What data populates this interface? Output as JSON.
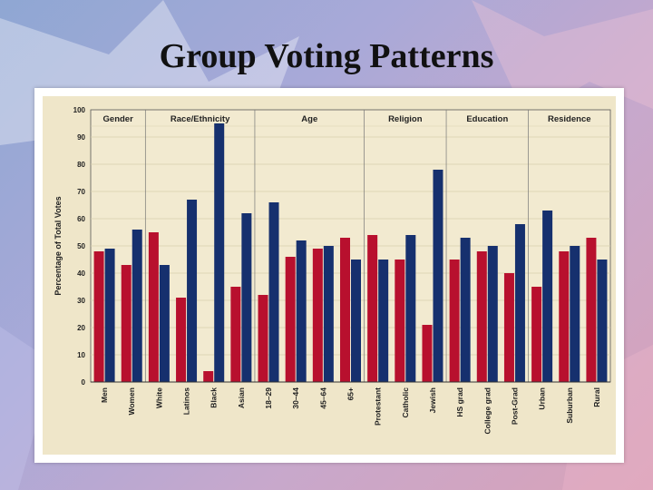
{
  "slide": {
    "title": "Group Voting Patterns"
  },
  "colors": {
    "series_a": "#b8102e",
    "series_b": "#16306e",
    "panel": "#efe6c9"
  },
  "chart_data": {
    "type": "bar",
    "title": "",
    "xlabel": "",
    "ylabel": "Percentage of Total Votes",
    "ylim": [
      0,
      100
    ],
    "yticks": [
      0,
      10,
      20,
      30,
      40,
      50,
      60,
      70,
      80,
      90,
      100
    ],
    "groups": [
      {
        "name": "Gender",
        "categories": [
          "Men",
          "Women"
        ]
      },
      {
        "name": "Race/Ethnicity",
        "categories": [
          "White",
          "Latinos",
          "Black",
          "Asian"
        ]
      },
      {
        "name": "Age",
        "categories": [
          "18–29",
          "30–44",
          "45–64",
          "65+"
        ]
      },
      {
        "name": "Religion",
        "categories": [
          "Protestant",
          "Catholic",
          "Jewish"
        ]
      },
      {
        "name": "Education",
        "categories": [
          "HS grad",
          "College grad",
          "Post-Grad"
        ]
      },
      {
        "name": "Residence",
        "categories": [
          "Urban",
          "Suburban",
          "Rural"
        ]
      }
    ],
    "categories": [
      "Men",
      "Women",
      "White",
      "Latinos",
      "Black",
      "Asian",
      "18–29",
      "30–44",
      "45–64",
      "65+",
      "Protestant",
      "Catholic",
      "Jewish",
      "HS grad",
      "College grad",
      "Post-Grad",
      "Urban",
      "Suburban",
      "Rural"
    ],
    "series": [
      {
        "name": "Red",
        "color": "#b8102e",
        "values": [
          48,
          43,
          55,
          31,
          4,
          35,
          32,
          46,
          49,
          53,
          54,
          45,
          21,
          45,
          48,
          40,
          35,
          48,
          53
        ]
      },
      {
        "name": "Blue",
        "color": "#16306e",
        "values": [
          49,
          56,
          43,
          67,
          95,
          62,
          66,
          52,
          50,
          45,
          45,
          54,
          78,
          53,
          50,
          58,
          63,
          50,
          45
        ]
      }
    ]
  }
}
